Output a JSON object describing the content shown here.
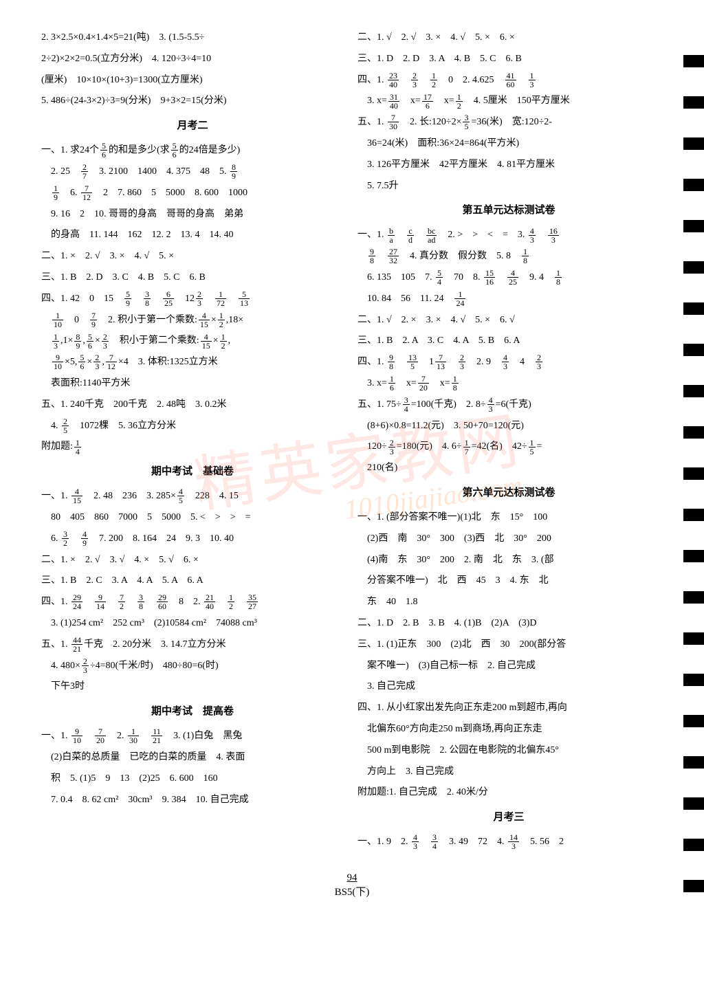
{
  "left": {
    "pre_lines": [
      "2. 3×2.5×0.4×1.4×5=21(吨)　3. (1.5-5.5÷",
      "2÷2)×2×2=0.5(立方分米)　4. 120÷3÷4=10",
      "(厘米)　10×10×(10+3)=1300(立方厘米)",
      "5. 486÷(24-3×2)÷3=9(分米)　9+3×2=15(分米)"
    ],
    "heading1": "月考二",
    "sec1_lines": [
      "一、1. 求24个{5/6}的和是多少(求{5/6}的24倍是多少)",
      "　2. 25　{2/7}　3. 2100　1400　4. 375　48　5. {8/9}",
      "　{1/9}　6. {7/12}　2　7. 860　5　5000　8. 600　1000",
      "　9. 16　2　10. 哥哥的身高　哥哥的身高　弟弟",
      "　的身高　11. 144　162　12. 2　13. 4　14. 40",
      "二、1. ×　2. √　3. ×　4. √　5. ×",
      "三、1. B　2. D　3. C　4. B　5. C　6. B",
      "四、1. 42　0　15　{5/9}　{3/8}　{6/25}　12{2/3}　{1/72}　{5/13}",
      "　{1/10}　0　{7/9}　2. 积小于第一个乘数:{4/15}×{1/2},18×",
      "　{1/3},1×{8/9},{5/6}×{2/3}　积小于第二个乘数:{4/15}×{1/2},",
      "　{9/10}×5,{5/6}×{2/3},{7/12}×4　3. 体积:1325立方米",
      "　表面积:1140平方米",
      "五、1. 240千克　200千克　2. 48吨　3. 0.2米",
      "　4. {2/5}　1072棵　5. 36立方分米",
      "附加题:{1/4}"
    ],
    "heading2": "期中考试　基础卷",
    "sec2_lines": [
      "一、1. {4/15}　2. 48　236　3. 285×{4/5}　228　4. 15",
      "　80　405　860　7000　5　5000　5. <　>　>　=",
      "　6. {3/2}　{4/9}　7. 200　8. 164　24　9. 3　10. 40",
      "二、1. ×　2. √　3. √　4. ×　5. √　6. ×",
      "三、1. B　2. C　3. A　4. A　5. A　6. A",
      "四、1. {29/24}　{9/14}　{7/2}　{3/8}　{29/60}　8　2. {21/40}　{1/2}　{35/27}",
      "　3. (1)254 cm²　252 cm³　(2)10584 cm²　74088 cm³",
      "五、1. {44/21}千克　2. 20分米　3. 14.7立方分米",
      "　4. 480×{2/3}÷4=80(千米/时)　480÷80=6(时)",
      "　下午3时"
    ],
    "heading3": "期中考试　提高卷",
    "sec3_lines": [
      "一、1. {9/10}　{7/20}　2. {1/30}　{11/21}　3. (1)白兔　黑兔",
      "　(2)白菜的总质量　已吃的白菜的质量　4. 表面",
      "　积　5. (1)5　9　13　(2)25　6. 600　160",
      "　7. 0.4　8. 62 cm²　30cm³　9. 384　10. 自己完成"
    ]
  },
  "right": {
    "top_lines": [
      "二、1. √　2. √　3. ×　4. √　5. ×　6. ×",
      "三、1. D　2. D　3. A　4. B　5. C　6. B",
      "四、1. {23/40}　{2/3}　{1/2}　0　2. 4.625　{41/60}　{1/3}",
      "　3. x={31/40}　x={17/6}　x={1/2}　4. 5厘米　150平方厘米",
      "五、1. {7/30}　2. 长:120÷2×{3/5}=36(米)　宽:120÷2-",
      "　36=24(米)　面积:36×24=864(平方米)",
      "　3. 126平方厘米　42平方厘米　4. 81平方厘米",
      "　5. 7.5升"
    ],
    "heading1": "第五单元达标测试卷",
    "sec1_lines": [
      "一、1. {b/a}　{c/d}　{bc/ad}　2. >　>　<　=　3. {4/3}　{16/3}",
      "　{9/8}　{27/32}　4. 真分数　假分数　5. 8　{1/8}",
      "　6. 135　105　7. {5/4}　70　8. {15/16}　{4/25}　9. 4　{1/8}",
      "　10. 84　56　11. 24　{1/24}",
      "二、1. √　2. ×　3. ×　4. √　5. ×　6. √",
      "三、1. B　2. A　3. C　4. A　5. B　6. A",
      "四、1. {9/8}　{13/5}　1{7/13}　{2/3}　2. 9　{4/3}　4　{2/3}",
      "　3. x={1/6}　x={7/20}　x={1/8}",
      "五、1. 75÷{3/4}=100(千克)　2. 8÷{4/3}=6(千克)",
      "　(8+6)×0.8=11.2(元)　3. 50+70=120(元)",
      "　120÷{2/3}=180(元)　4. 6÷{1/7}=42(名)　42÷{1/5}=",
      "　210(名)"
    ],
    "heading2": "第六单元达标测试卷",
    "sec2_lines": [
      "一、1. (部分答案不唯一)(1)北　东　15°　100",
      "　(2)西　南　30°　300　(3)西　北　30°　200",
      "　(4)南　东　30°　200　2. 南　北　东　3. (部",
      "　分答案不唯一)　北　西　45　3　4. 东　北",
      "　东　40　1.8",
      "二、1. D　2. B　3. B　4. (1)B　(2)A　(3)D",
      "三、1. (1)正东　300　(2)北　西　30　200(部分答",
      "　案不唯一)　(3)自己标一标　2. 自己完成",
      "　3. 自己完成",
      "四、1. 从小红家出发先向正东走200 m到超市,再向",
      "　北偏东60°方向走250 m到商场,再向正东走",
      "　500 m到电影院　2. 公园在电影院的北偏东45°",
      "　方向上　3. 自己完成",
      "附加题:1. 自己完成　2. 40米/分"
    ],
    "heading3": "月考三",
    "sec3_lines": [
      "一、1. 9　2. {4/3}　{3/4}　3. 49　72　4. {14/3}　5. 56　2"
    ]
  },
  "footer": {
    "page_num": "94",
    "book": "BS5(下)"
  },
  "watermark": "精英家教网",
  "watermark2": "1010jiajiao.com"
}
